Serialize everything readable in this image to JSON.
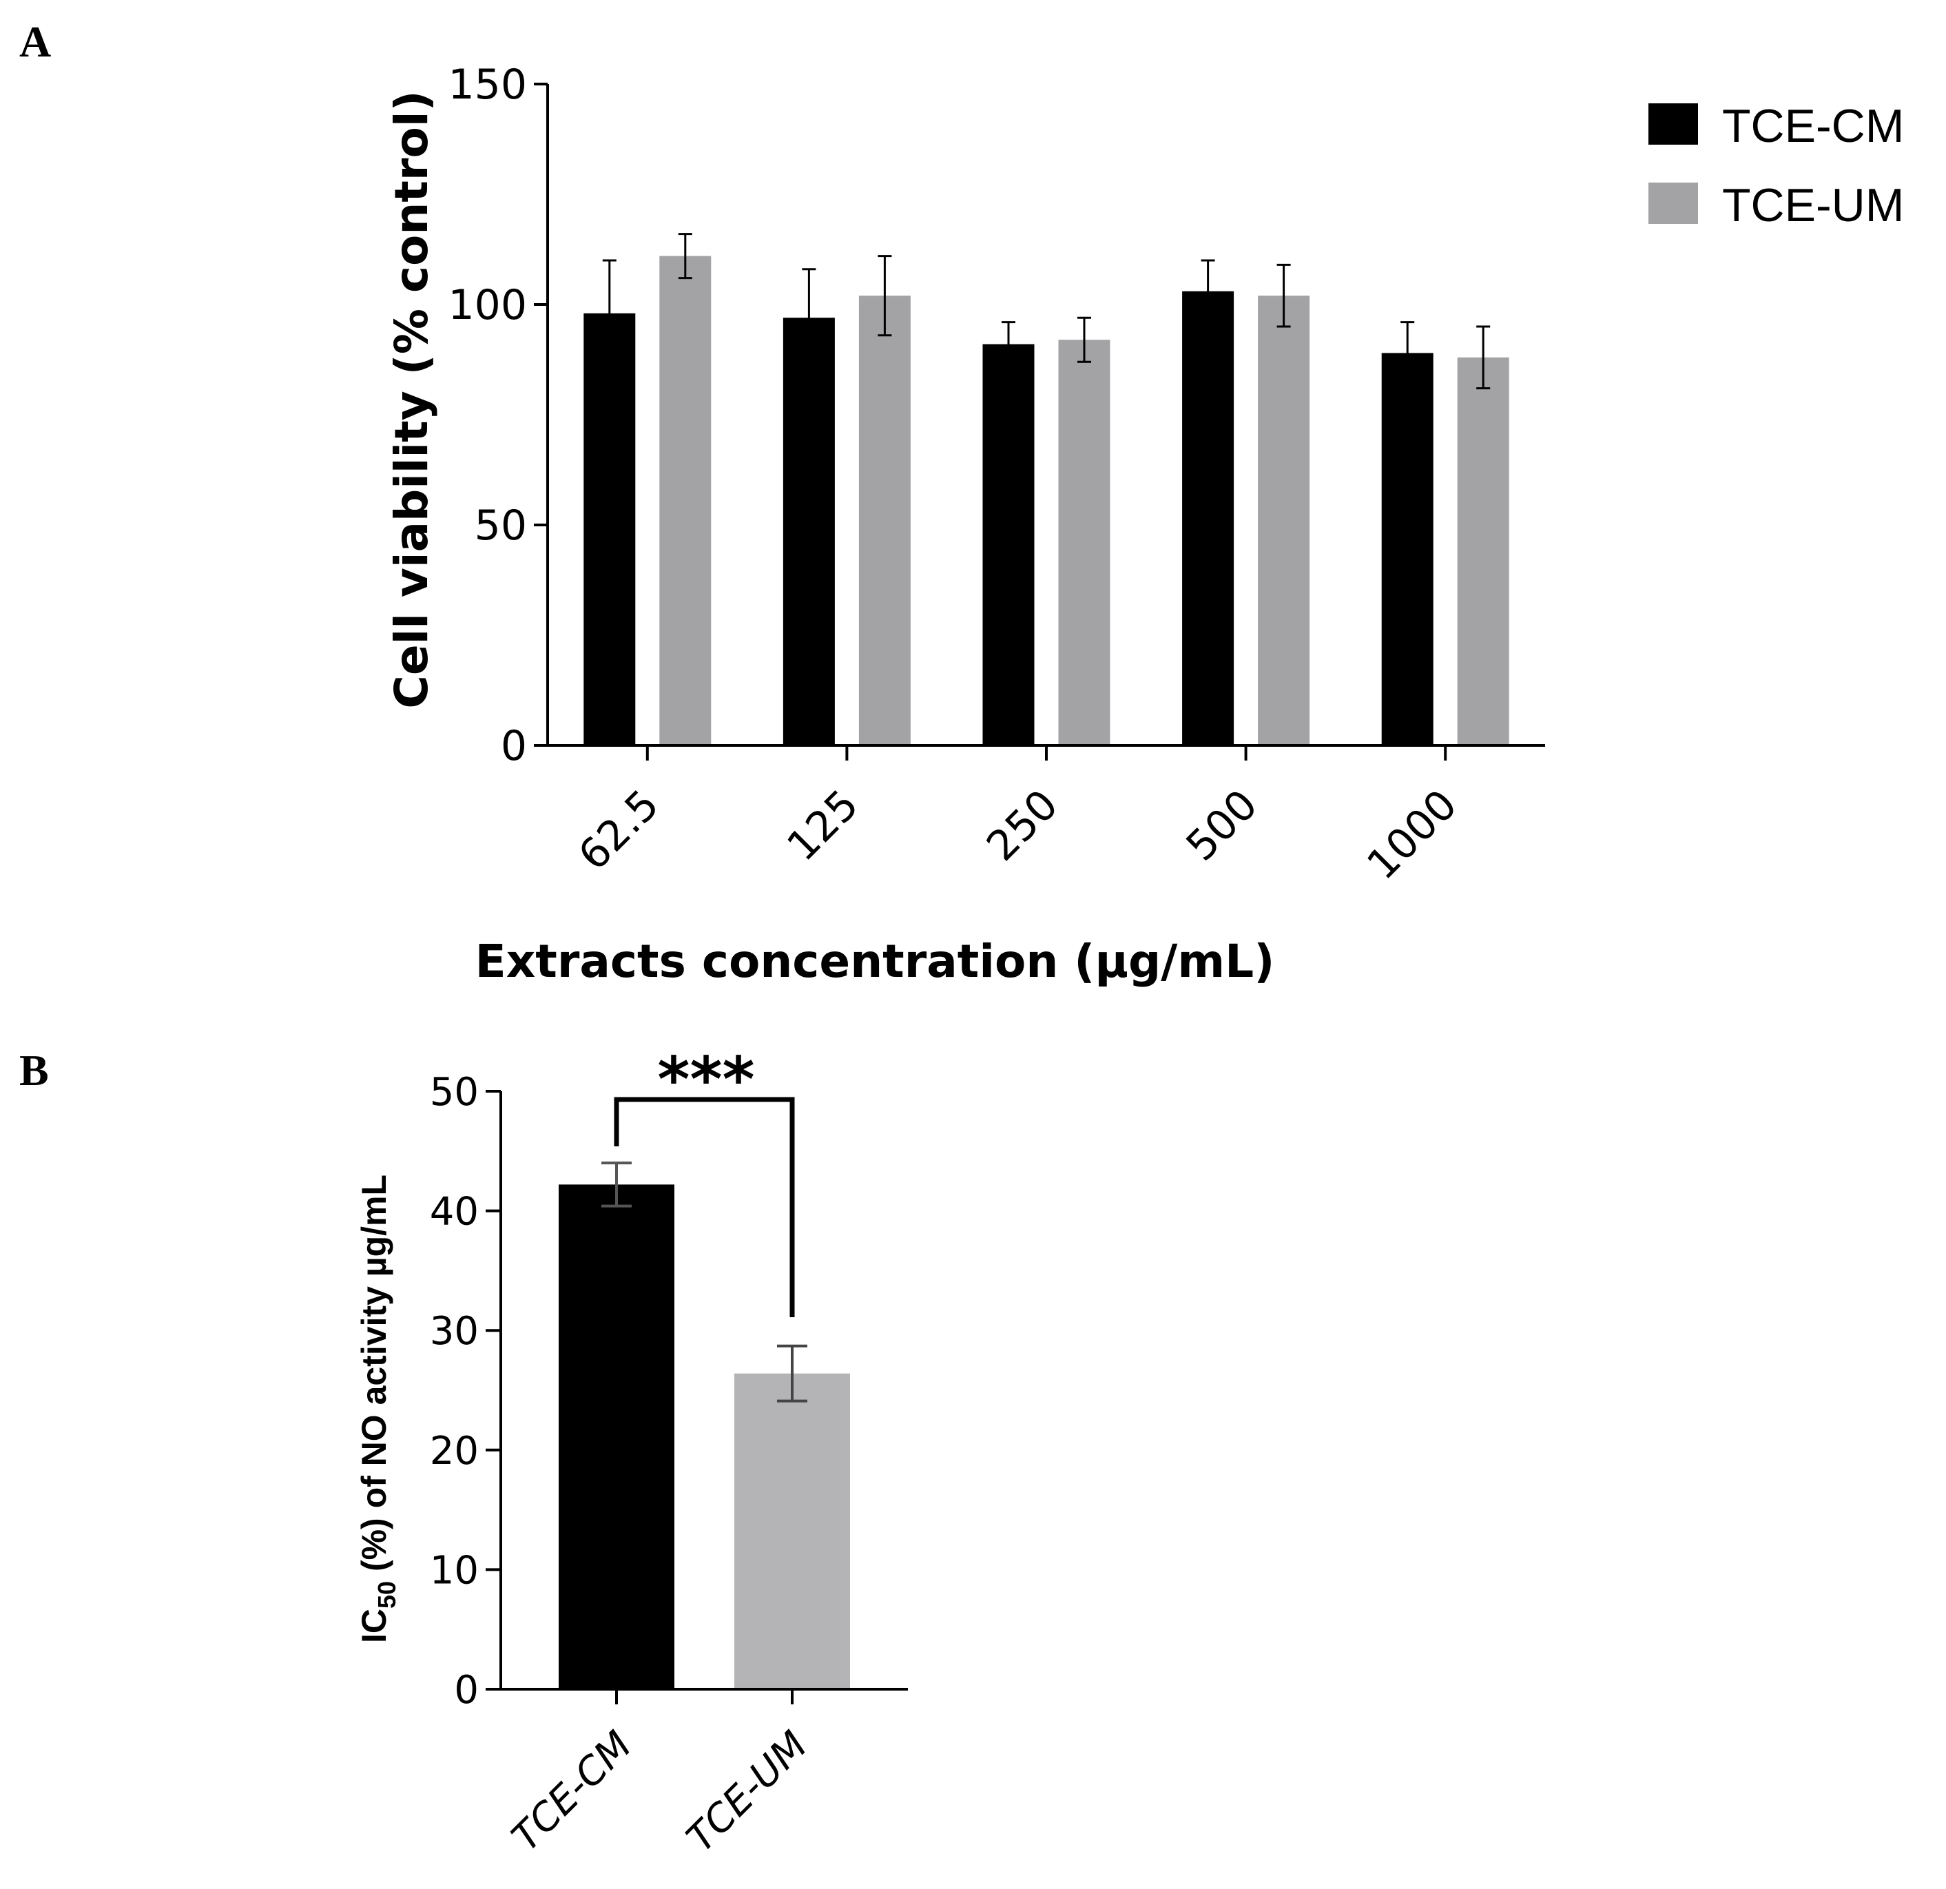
{
  "panels": {
    "a_label": "A",
    "b_label": "B"
  },
  "chart_data": [
    {
      "id": "panel-a",
      "type": "bar",
      "title": "",
      "xlabel": "Extracts concentration (µg/mL)",
      "ylabel": "Cell viability (% control)",
      "categories": [
        "62.5",
        "125",
        "250",
        "500",
        "1000"
      ],
      "series": [
        {
          "name": "TCE-CM",
          "color": "#000000",
          "values": [
            98,
            97,
            91,
            103,
            89
          ],
          "errors": [
            12,
            11,
            5,
            7,
            7
          ]
        },
        {
          "name": "TCE-UM",
          "color": "#a3a3a6",
          "values": [
            111,
            102,
            92,
            102,
            88
          ],
          "errors": [
            5,
            9,
            5,
            7,
            7
          ]
        }
      ],
      "ylim": [
        0,
        150
      ],
      "yticks": [
        0,
        50,
        100,
        150
      ],
      "grid": false,
      "legend": "top-right"
    },
    {
      "id": "panel-b",
      "type": "bar",
      "title": "",
      "xlabel": "",
      "ylabel": "IC50 (%) of NO activity µg/mL",
      "ylabel_parts": {
        "main": "IC",
        "sub": "50",
        "rest": " (%) of NO activity µg/mL"
      },
      "categories": [
        "TCE-CM",
        "TCE-UM"
      ],
      "values": [
        42.2,
        26.4
      ],
      "errors": [
        1.8,
        2.3
      ],
      "colors": [
        "#000000",
        "#b4b4b6"
      ],
      "ylim": [
        0,
        50
      ],
      "yticks": [
        0,
        10,
        20,
        30,
        40,
        50
      ],
      "grid": false,
      "significance": {
        "label": "***",
        "between": [
          "TCE-CM",
          "TCE-UM"
        ]
      }
    }
  ]
}
